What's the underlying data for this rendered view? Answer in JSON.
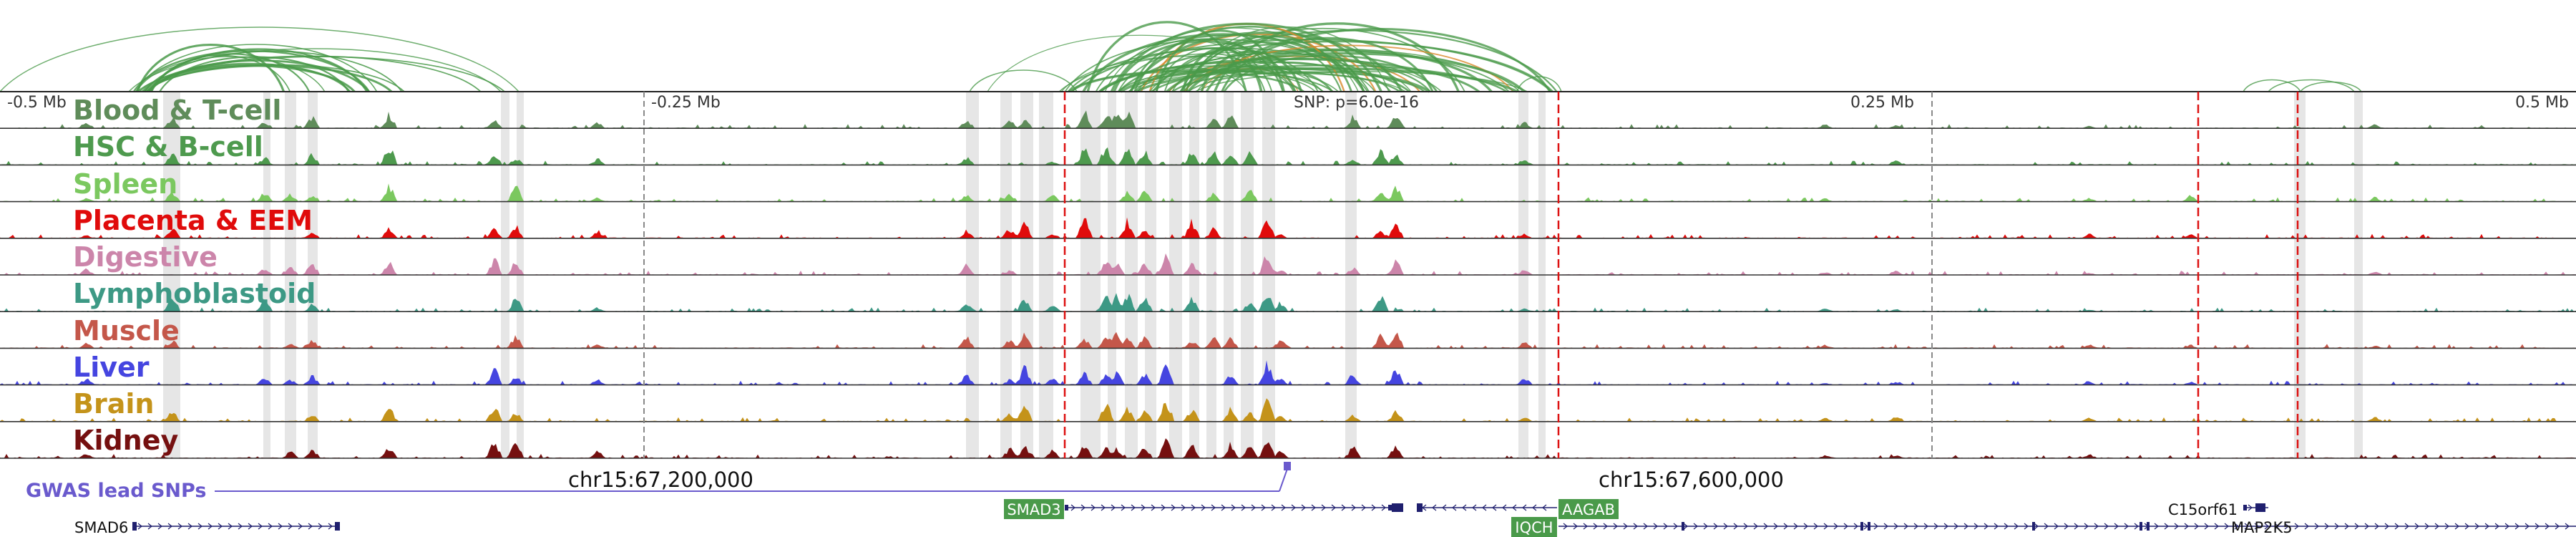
{
  "axis": {
    "ticks": [
      "-0.5 Mb",
      "-0.25 Mb",
      "0.25 Mb",
      "0.5 Mb"
    ],
    "snp_label": "SNP: p=6.0e-16"
  },
  "tracks": [
    {
      "name": "Blood & T-cell",
      "color": "#5f8c5a"
    },
    {
      "name": "HSC & B-cell",
      "color": "#4e9a4e"
    },
    {
      "name": "Spleen",
      "color": "#7bc85f"
    },
    {
      "name": "Placenta & EEM",
      "color": "#e00b0b"
    },
    {
      "name": "Digestive",
      "color": "#cc85aa"
    },
    {
      "name": "Lymphoblastoid",
      "color": "#3d9985"
    },
    {
      "name": "Muscle",
      "color": "#c4574a"
    },
    {
      "name": "Liver",
      "color": "#4545e0"
    },
    {
      "name": "Brain",
      "color": "#c4931a"
    },
    {
      "name": "Kidney",
      "color": "#751010"
    }
  ],
  "gwas": {
    "label": "GWAS lead SNPs",
    "color": "#6a5acd"
  },
  "coordinates": {
    "left": "chr15:67,200,000",
    "right": "chr15:67,600,000"
  },
  "genes": {
    "boxed": [
      "SMAD3",
      "AAGAB",
      "IQCH"
    ],
    "plain": [
      "SMAD6",
      "C15orf61",
      "MAP2K5"
    ]
  },
  "palette": {
    "arc": "#4a9a4a",
    "arc_orange": "#d98a2a",
    "gene_box": "#4a9a4a",
    "exon": "#1f1f6e",
    "highlight": "#e6e6e6",
    "dashed_red": "#dd1111"
  }
}
